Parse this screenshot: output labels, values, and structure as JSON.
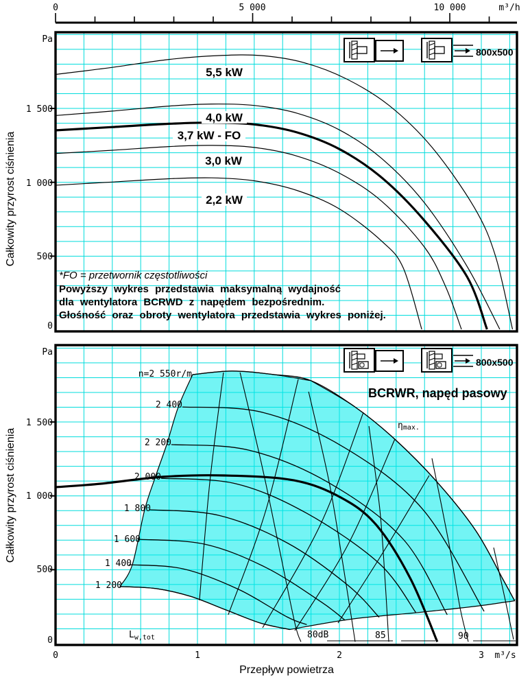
{
  "accent_colors": {
    "grid": "#00DCDC",
    "region_fill": "rgba(0,235,235,0.55)",
    "curve": "#000000"
  },
  "top_axis": {
    "unit": "m³/h",
    "tick_labels": [
      "0",
      "5 000",
      "10 000"
    ],
    "tick_values": [
      0,
      5000,
      10000
    ],
    "minor_step": 1000
  },
  "y_axis": {
    "unit": "Pa",
    "label": "Całkowity przyrost ciśnienia",
    "tick_labels": [
      "0",
      "500",
      "1 000",
      "1 500"
    ]
  },
  "bottom_axis": {
    "unit": "m³/s",
    "tick_labels": [
      "0",
      "1",
      "2",
      "3"
    ],
    "label": "Przepływ powietrza"
  },
  "size_label": "800x500",
  "notes": {
    "fo": "*FO = przetwornik częstotliwości",
    "line1": "Powyższy wykres przedstawia maksymalną wydajność",
    "line2": "dla wentylatora BCRWD z napędem bezpośrednim.",
    "line3": "Głośność oraz obroty wentylatora przedstawia wykres poniżej."
  },
  "chart_data": [
    {
      "type": "line",
      "title": "",
      "xlabel": "m³/h (top axis) / m³/s",
      "ylabel": "Całkowity przyrost ciśnienia (Pa)",
      "x_range_m3s": [
        0,
        3.25
      ],
      "y_range_pa": [
        0,
        2010
      ],
      "grid": "on",
      "series": [
        {
          "name": "5,5 kW",
          "bold": false,
          "points": [
            [
              0,
              1730
            ],
            [
              0.4,
              1778
            ],
            [
              0.8,
              1832
            ],
            [
              1.15,
              1858
            ],
            [
              1.45,
              1858
            ],
            [
              1.75,
              1810
            ],
            [
              2.05,
              1700
            ],
            [
              2.35,
              1520
            ],
            [
              2.65,
              1240
            ],
            [
              2.95,
              830
            ],
            [
              3.1,
              500
            ],
            [
              3.22,
              5
            ]
          ]
        },
        {
          "name": "4,0 kW",
          "bold": false,
          "points": [
            [
              0,
              1452
            ],
            [
              0.4,
              1482
            ],
            [
              0.8,
              1516
            ],
            [
              1.1,
              1530
            ],
            [
              1.4,
              1520
            ],
            [
              1.7,
              1468
            ],
            [
              2.0,
              1355
            ],
            [
              2.3,
              1160
            ],
            [
              2.6,
              860
            ],
            [
              2.9,
              430
            ],
            [
              3.13,
              5
            ]
          ]
        },
        {
          "name": "3,7 kW - FO",
          "bold": true,
          "points": [
            [
              0,
              1352
            ],
            [
              0.4,
              1374
            ],
            [
              0.8,
              1396
            ],
            [
              1.1,
              1404
            ],
            [
              1.4,
              1392
            ],
            [
              1.7,
              1338
            ],
            [
              2.0,
              1225
            ],
            [
              2.3,
              1030
            ],
            [
              2.6,
              740
            ],
            [
              2.9,
              360
            ],
            [
              3.04,
              5
            ]
          ]
        },
        {
          "name": "3,0 kW",
          "bold": false,
          "points": [
            [
              0,
              1195
            ],
            [
              0.4,
              1217
            ],
            [
              0.8,
              1242
            ],
            [
              1.1,
              1250
            ],
            [
              1.4,
              1236
            ],
            [
              1.7,
              1178
            ],
            [
              2.0,
              1062
            ],
            [
              2.3,
              870
            ],
            [
              2.6,
              560
            ],
            [
              2.75,
              290
            ],
            [
              2.86,
              5
            ]
          ]
        },
        {
          "name": "2,2 kW",
          "bold": false,
          "points": [
            [
              0,
              980
            ],
            [
              0.4,
              1002
            ],
            [
              0.8,
              1024
            ],
            [
              1.1,
              1030
            ],
            [
              1.4,
              1010
            ],
            [
              1.7,
              945
            ],
            [
              2.0,
              820
            ],
            [
              2.3,
              600
            ],
            [
              2.45,
              420
            ],
            [
              2.58,
              5
            ]
          ]
        }
      ]
    },
    {
      "type": "line",
      "title": "BCRWR, napęd pasowy",
      "xlabel": "Przepływ powietrza (m³/s)",
      "ylabel": "Całkowity przyrost ciśnienia (Pa)",
      "x_range_m3s": [
        0,
        3.25
      ],
      "y_range_pa": [
        0,
        2020
      ],
      "grid": "on",
      "envelope": {
        "surge_line": [
          [
            0.454,
            386
          ],
          [
            0.541,
            534
          ],
          [
            0.628,
            906
          ],
          [
            0.7,
            1119
          ],
          [
            0.783,
            1347
          ],
          [
            0.865,
            1602
          ],
          [
            0.966,
            1821
          ]
        ],
        "top_2550": [
          [
            0.966,
            1821
          ],
          [
            1.24,
            1845
          ],
          [
            1.53,
            1822
          ],
          [
            1.8,
            1780
          ]
        ],
        "right_2550": [
          [
            1.8,
            1780
          ],
          [
            2.11,
            1602
          ],
          [
            2.39,
            1384
          ],
          [
            2.69,
            1092
          ],
          [
            2.96,
            766
          ],
          [
            3.15,
            440
          ],
          [
            3.235,
            290
          ]
        ],
        "min_system": [
          [
            3.235,
            290
          ],
          [
            2.98,
            255
          ],
          [
            2.55,
            210
          ],
          [
            2.08,
            165
          ],
          [
            1.65,
            95
          ]
        ],
        "rpm_1200_back": [
          [
            1.65,
            95
          ],
          [
            1.44,
            140
          ],
          [
            1.19,
            232
          ],
          [
            0.95,
            320
          ],
          [
            0.71,
            372
          ],
          [
            0.454,
            386
          ]
        ]
      },
      "rpm_labels": [
        {
          "text": "n=2 550r/m",
          "rpm": 2550
        },
        {
          "text": "2 400",
          "rpm": 2400
        },
        {
          "text": "2 200",
          "rpm": 2200
        },
        {
          "text": "2 000",
          "rpm": 2000
        },
        {
          "text": "1 800",
          "rpm": 1800
        },
        {
          "text": "1 600",
          "rpm": 1600
        },
        {
          "text": "1 400",
          "rpm": 1400
        },
        {
          "text": "1 200",
          "rpm": 1200
        }
      ],
      "rpm_series": [
        {
          "rpm": 2550,
          "points": [
            [
              0.966,
              1821
            ],
            [
              1.24,
              1845
            ],
            [
              1.53,
              1822
            ],
            [
              1.8,
              1780
            ],
            [
              2.11,
              1602
            ],
            [
              2.39,
              1384
            ],
            [
              2.69,
              1092
            ],
            [
              2.96,
              766
            ],
            [
              3.15,
              440
            ],
            [
              3.235,
              290
            ]
          ]
        },
        {
          "rpm": 2400,
          "points": [
            [
              0.894,
              1602
            ],
            [
              1.46,
              1565
            ],
            [
              2.04,
              1324
            ],
            [
              2.59,
              906
            ],
            [
              3.02,
              218
            ]
          ]
        },
        {
          "rpm": 2200,
          "points": [
            [
              0.816,
              1347
            ],
            [
              1.36,
              1310
            ],
            [
              1.92,
              1092
            ],
            [
              2.45,
              706
            ],
            [
              2.76,
              195
            ]
          ]
        },
        {
          "rpm": 2000,
          "points": [
            [
              0.744,
              1119
            ],
            [
              1.27,
              1082
            ],
            [
              1.77,
              882
            ],
            [
              2.28,
              543
            ],
            [
              2.54,
              208
            ]
          ]
        },
        {
          "rpm": 1800,
          "points": [
            [
              0.662,
              906
            ],
            [
              1.15,
              868
            ],
            [
              1.63,
              683
            ],
            [
              2.06,
              395
            ],
            [
              2.28,
              178
            ]
          ]
        },
        {
          "rpm": 1600,
          "points": [
            [
              0.58,
              706
            ],
            [
              1.05,
              673
            ],
            [
              1.48,
              516
            ],
            [
              1.87,
              283
            ],
            [
              2.04,
              158
            ]
          ]
        },
        {
          "rpm": 1400,
          "points": [
            [
              0.517,
              534
            ],
            [
              0.9,
              506
            ],
            [
              1.29,
              367
            ],
            [
              1.63,
              181
            ],
            [
              1.77,
              128
            ]
          ]
        },
        {
          "rpm": 1200,
          "points": [
            [
              0.454,
              386
            ],
            [
              0.71,
              372
            ],
            [
              0.95,
              320
            ],
            [
              1.19,
              232
            ],
            [
              1.44,
              140
            ],
            [
              1.65,
              95
            ]
          ]
        }
      ],
      "max_curve_bold": [
        [
          0,
          1059
        ],
        [
          0.32,
          1082
        ],
        [
          0.76,
          1129
        ],
        [
          1.19,
          1138
        ],
        [
          1.68,
          1105
        ],
        [
          2.01,
          989
        ],
        [
          2.26,
          803
        ],
        [
          2.5,
          441
        ],
        [
          2.69,
          12
        ]
      ],
      "efficiency_curves": [
        [
          [
            1.014,
            293
          ],
          [
            1.087,
            1092
          ],
          [
            1.183,
            1835
          ]
        ],
        [
          [
            1.217,
            195
          ],
          [
            1.483,
            906
          ],
          [
            1.71,
            1789
          ]
        ],
        [
          [
            1.459,
            107
          ],
          [
            1.87,
            813
          ],
          [
            2.169,
            1565
          ]
        ],
        [
          [
            1.686,
            88
          ],
          [
            2.063,
            674
          ],
          [
            2.391,
            1384
          ]
        ],
        [
          [
            1.99,
            139
          ],
          [
            2.314,
            627
          ],
          [
            2.633,
            1138
          ]
        ]
      ],
      "db_curves": [
        {
          "label": "",
          "points": [
            [
              1.3,
              1835
            ],
            [
              1.459,
              1184
            ],
            [
              1.58,
              627
            ],
            [
              1.686,
              139
            ],
            [
              1.729,
              12
            ]
          ]
        },
        {
          "label": "80dB",
          "points": [
            [
              1.783,
              1705
            ],
            [
              1.928,
              1092
            ],
            [
              2.024,
              543
            ],
            [
              2.087,
              163
            ],
            [
              2.111,
              12
            ]
          ]
        },
        {
          "label": "85",
          "points": [
            [
              2.208,
              1472
            ],
            [
              2.285,
              906
            ],
            [
              2.324,
              395
            ],
            [
              2.348,
              12
            ]
          ]
        },
        {
          "label": "90",
          "points": [
            [
              2.652,
              1254
            ],
            [
              2.768,
              697
            ],
            [
              2.85,
              242
            ],
            [
              2.908,
              12
            ]
          ]
        },
        {
          "label": "",
          "points": [
            [
              3.087,
              650
            ],
            [
              3.169,
              293
            ],
            [
              3.227,
              28
            ]
          ]
        }
      ],
      "eta_max_label": {
        "sym": "η",
        "sub": "max."
      },
      "lw_label": {
        "sym": "L",
        "sub": "w,tot"
      },
      "db_labels": [
        "80dB",
        "85",
        "90"
      ]
    }
  ]
}
